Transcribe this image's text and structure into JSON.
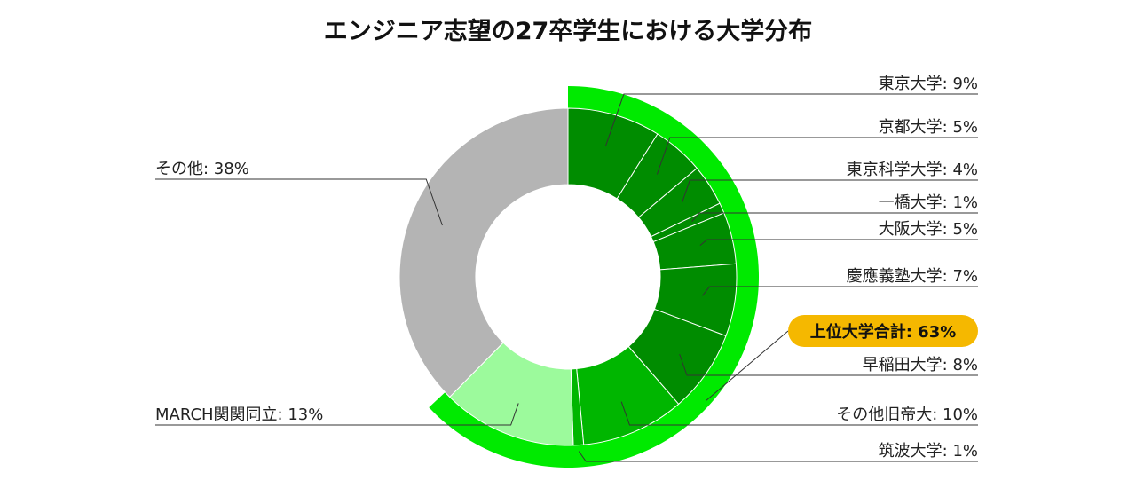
{
  "chart_data": {
    "type": "pie",
    "title": "エンジニア志望の27卒学生における大学分布",
    "series": [
      {
        "name": "",
        "categories": [
          "東京大学",
          "京都大学",
          "東京科学大学",
          "一橋大学",
          "大阪大学",
          "慶應義塾大学",
          "早稲田大学",
          "その他旧帝大",
          "筑波大学",
          "MARCH関関同立",
          "その他"
        ],
        "values": [
          9,
          5,
          4,
          1,
          5,
          7,
          8,
          10,
          1,
          13,
          38
        ],
        "labels": [
          "東京大学: 9%",
          "京都大学: 5%",
          "東京科学大学: 4%",
          "一橋大学: 1%",
          "大阪大学: 5%",
          "慶應義塾大学: 7%",
          "早稲田大学: 8%",
          "その他旧帝大: 10%",
          "筑波大学: 1%",
          "MARCH関関同立: 13%",
          "その他: 38%"
        ],
        "colors": [
          "#008c00",
          "#008c00",
          "#008c00",
          "#008c00",
          "#008c00",
          "#008c00",
          "#008c00",
          "#00b600",
          "#00b600",
          "#9cfa9c",
          "#b4b4b4"
        ]
      }
    ],
    "highlight": {
      "label": "上位大学合計: 63%",
      "value": 63,
      "ring_color": "#00ea00",
      "badge_color": "#f5b800"
    },
    "unit": "%"
  }
}
